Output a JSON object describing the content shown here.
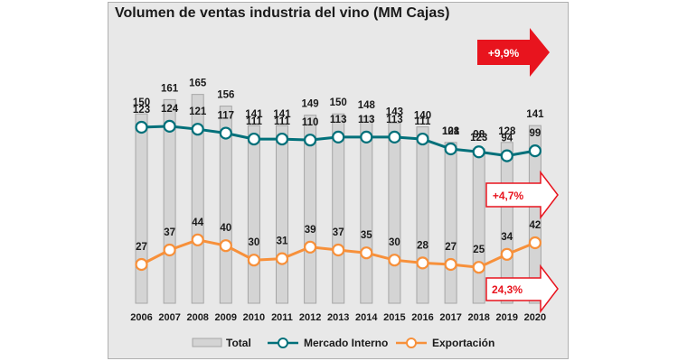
{
  "title": "Volumen de ventas industria del vino (MM Cajas)",
  "colors": {
    "bar_fill": "#d4d4d4",
    "bar_stroke": "#a6a6a6",
    "mercado": "#00707a",
    "exportacion": "#f7903a",
    "callout_red": "#e8141e"
  },
  "callouts": {
    "total": "+9,9%",
    "mercado": "+4,7%",
    "exportacion": "24,3%"
  },
  "chart_data": {
    "type": "bar",
    "categories": [
      "2006",
      "2007",
      "2008",
      "2009",
      "2010",
      "2011",
      "2012",
      "2013",
      "2014",
      "2015",
      "2016",
      "2017",
      "2018",
      "2019",
      "2020"
    ],
    "series": [
      {
        "name": "Total",
        "type": "bar",
        "values": [
          150,
          161,
          165,
          156,
          141,
          141,
          149,
          150,
          148,
          143,
          140,
          128,
          123,
          128,
          141
        ]
      },
      {
        "name": "Mercado Interno",
        "type": "line",
        "values": [
          123,
          124,
          121,
          117,
          111,
          111,
          110,
          113,
          113,
          113,
          111,
          101,
          98,
          94,
          99
        ]
      },
      {
        "name": "Exportación",
        "type": "line",
        "values": [
          27,
          37,
          44,
          40,
          30,
          31,
          39,
          37,
          35,
          30,
          28,
          27,
          25,
          34,
          42
        ]
      }
    ],
    "title": "Volumen de ventas industria del vino (MM Cajas)",
    "legend": "bottom"
  }
}
